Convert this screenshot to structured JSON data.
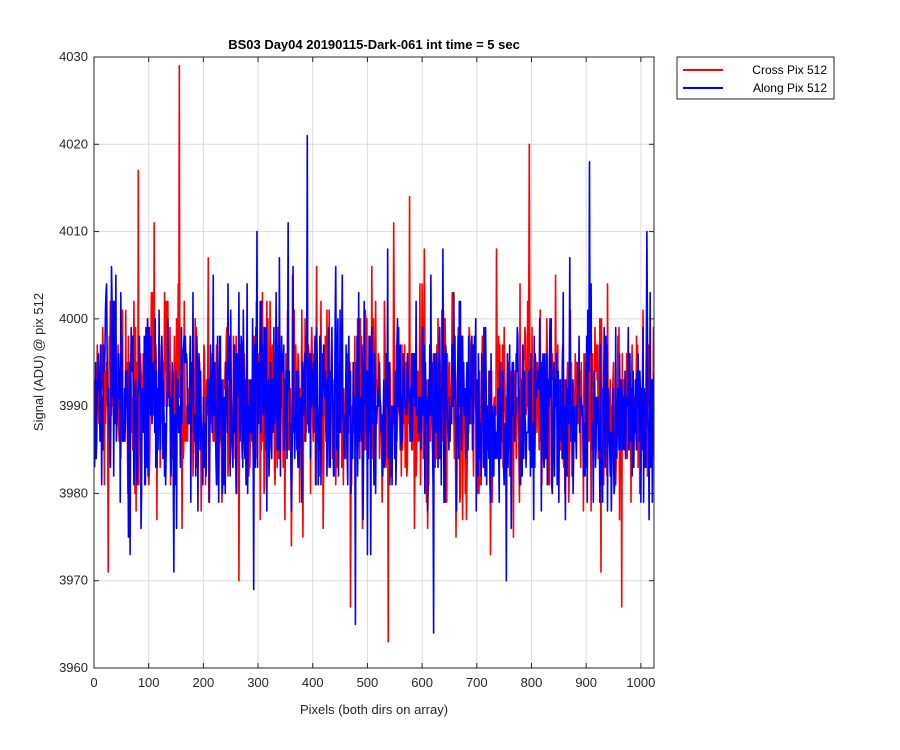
{
  "chart_data": {
    "type": "line",
    "title": "BS03 Day04 20190115-Dark-061 int time = 5 sec",
    "xlabel": "Pixels (both dirs on array)",
    "ylabel": "Signal (ADU) @ pix 512",
    "xlim": [
      0,
      1024
    ],
    "ylim": [
      3960,
      4030
    ],
    "xticks": [
      0,
      100,
      200,
      300,
      400,
      500,
      600,
      700,
      800,
      900,
      1000
    ],
    "yticks": [
      3960,
      3970,
      3980,
      3990,
      4000,
      4010,
      4020,
      4030
    ],
    "grid": true,
    "legend_position": "outside-top-right",
    "noise_model": {
      "x_start": 1,
      "x_end": 1024,
      "mean": 3990,
      "std": 6,
      "min": 3963,
      "max": 4029
    },
    "series": [
      {
        "name": "Cross Pix 512",
        "color": "#ff0000",
        "seed": 12345,
        "spikes": [
          {
            "x": 156,
            "y": 4029
          },
          {
            "x": 796,
            "y": 4020
          },
          {
            "x": 81,
            "y": 4017
          },
          {
            "x": 577,
            "y": 4014
          },
          {
            "x": 548,
            "y": 4011
          },
          {
            "x": 110,
            "y": 4011
          },
          {
            "x": 538,
            "y": 3963
          },
          {
            "x": 469,
            "y": 3967
          },
          {
            "x": 965,
            "y": 3967
          },
          {
            "x": 26,
            "y": 3971
          },
          {
            "x": 265,
            "y": 3970
          }
        ]
      },
      {
        "name": "Along Pix 512",
        "color": "#0000ff",
        "seed": 67890,
        "spikes": [
          {
            "x": 390,
            "y": 4021
          },
          {
            "x": 906,
            "y": 4018
          },
          {
            "x": 355,
            "y": 4011
          },
          {
            "x": 478,
            "y": 3965
          },
          {
            "x": 621,
            "y": 3964
          },
          {
            "x": 292,
            "y": 3969
          },
          {
            "x": 754,
            "y": 3970
          }
        ]
      }
    ]
  }
}
